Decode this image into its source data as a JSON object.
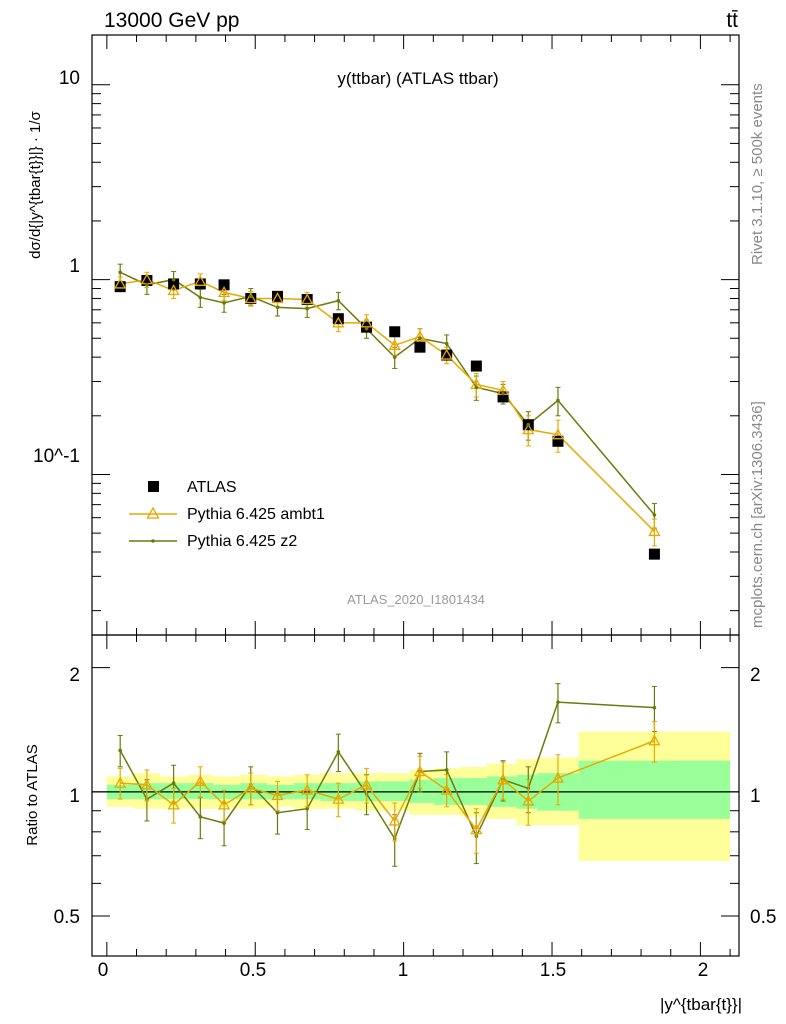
{
  "header": {
    "energy_label": "13000 GeV pp",
    "process_label": "tt̄"
  },
  "side_labels": {
    "rivet": "Rivet 3.1.10, ≥ 500k events",
    "mcplots": "mcplots.cern.ch [arXiv:1306.3436]"
  },
  "chart_data": [
    {
      "type": "scatter",
      "title": "y(ttbar) (ATLAS ttbar)",
      "watermark": "ATLAS_2020_I1801434",
      "ylabel": "dσ/d{|y^{tbar{t}}|} · 1/σ",
      "yscale": "log",
      "ylim": [
        0.015,
        18
      ],
      "xlim": [
        -0.05,
        2.13
      ],
      "yticks": [
        "10",
        "1",
        "10^-1"
      ],
      "legend_position": "lower-left",
      "x": [
        0.045,
        0.135,
        0.225,
        0.315,
        0.395,
        0.485,
        0.575,
        0.675,
        0.78,
        0.875,
        0.97,
        1.055,
        1.145,
        1.245,
        1.335,
        1.42,
        1.52,
        1.845
      ],
      "series": [
        {
          "name": "ATLAS",
          "color": "#000000",
          "marker": "square",
          "values": [
            0.92,
            0.99,
            0.95,
            0.95,
            0.94,
            0.8,
            0.82,
            0.79,
            0.63,
            0.57,
            0.54,
            0.45,
            0.41,
            0.36,
            0.25,
            0.18,
            0.148,
            0.039
          ]
        },
        {
          "name": "Pythia 6.425 ambt1",
          "color": "#e8a800",
          "marker": "triangle",
          "values": [
            0.95,
            1.0,
            0.88,
            0.98,
            0.86,
            0.8,
            0.8,
            0.79,
            0.6,
            0.6,
            0.46,
            0.51,
            0.41,
            0.29,
            0.27,
            0.17,
            0.16,
            0.051
          ],
          "errors": [
            0.08,
            0.09,
            0.08,
            0.09,
            0.08,
            0.07,
            0.07,
            0.07,
            0.06,
            0.06,
            0.05,
            0.05,
            0.04,
            0.04,
            0.03,
            0.03,
            0.03,
            0.008
          ]
        },
        {
          "name": "Pythia 6.425 z2",
          "color": "#6b7a0a",
          "marker": "dot",
          "values": [
            1.09,
            0.94,
            1.0,
            0.81,
            0.76,
            0.82,
            0.72,
            0.71,
            0.78,
            0.56,
            0.4,
            0.5,
            0.47,
            0.28,
            0.26,
            0.18,
            0.24,
            0.062
          ],
          "errors": [
            0.11,
            0.1,
            0.1,
            0.09,
            0.08,
            0.08,
            0.07,
            0.07,
            0.08,
            0.06,
            0.05,
            0.06,
            0.05,
            0.04,
            0.03,
            0.03,
            0.04,
            0.009
          ]
        }
      ]
    },
    {
      "type": "scatter",
      "ylabel": "Ratio to ATLAS",
      "xlabel": "|y^{tbar{t}}|",
      "yscale": "log",
      "ylim": [
        0.4,
        2.4
      ],
      "xlim": [
        -0.05,
        2.13
      ],
      "xticks": [
        "0",
        "0.5",
        "1",
        "1.5",
        "2"
      ],
      "yticks": [
        "2",
        "1",
        "0.5"
      ],
      "bins": [
        {
          "lo": 0.0,
          "hi": 0.09,
          "band_inner": [
            0.96,
            1.04
          ],
          "band_outer": [
            0.92,
            1.09
          ]
        },
        {
          "lo": 0.09,
          "hi": 0.18,
          "band_inner": [
            0.96,
            1.05
          ],
          "band_outer": [
            0.91,
            1.11
          ]
        },
        {
          "lo": 0.18,
          "hi": 0.27,
          "band_inner": [
            0.96,
            1.05
          ],
          "band_outer": [
            0.91,
            1.09
          ]
        },
        {
          "lo": 0.27,
          "hi": 0.36,
          "band_inner": [
            0.96,
            1.05
          ],
          "band_outer": [
            0.91,
            1.1
          ]
        },
        {
          "lo": 0.36,
          "hi": 0.45,
          "band_inner": [
            0.96,
            1.04
          ],
          "band_outer": [
            0.91,
            1.09
          ]
        },
        {
          "lo": 0.45,
          "hi": 0.54,
          "band_inner": [
            0.96,
            1.05
          ],
          "band_outer": [
            0.91,
            1.1
          ]
        },
        {
          "lo": 0.54,
          "hi": 0.63,
          "band_inner": [
            0.96,
            1.04
          ],
          "band_outer": [
            0.92,
            1.09
          ]
        },
        {
          "lo": 0.63,
          "hi": 0.72,
          "band_inner": [
            0.96,
            1.05
          ],
          "band_outer": [
            0.91,
            1.1
          ]
        },
        {
          "lo": 0.72,
          "hi": 0.84,
          "band_inner": [
            0.95,
            1.05
          ],
          "band_outer": [
            0.91,
            1.11
          ]
        },
        {
          "lo": 0.84,
          "hi": 0.93,
          "band_inner": [
            0.95,
            1.06
          ],
          "band_outer": [
            0.9,
            1.11
          ]
        },
        {
          "lo": 0.93,
          "hi": 1.02,
          "band_inner": [
            0.95,
            1.06
          ],
          "band_outer": [
            0.9,
            1.11
          ]
        },
        {
          "lo": 1.02,
          "hi": 1.1,
          "band_inner": [
            0.94,
            1.07
          ],
          "band_outer": [
            0.88,
            1.13
          ]
        },
        {
          "lo": 1.1,
          "hi": 1.19,
          "band_inner": [
            0.93,
            1.08
          ],
          "band_outer": [
            0.88,
            1.14
          ]
        },
        {
          "lo": 1.19,
          "hi": 1.28,
          "band_inner": [
            0.93,
            1.08
          ],
          "band_outer": [
            0.87,
            1.15
          ]
        },
        {
          "lo": 1.28,
          "hi": 1.38,
          "band_inner": [
            0.92,
            1.09
          ],
          "band_outer": [
            0.86,
            1.17
          ]
        },
        {
          "lo": 1.38,
          "hi": 1.45,
          "band_inner": [
            0.91,
            1.1
          ],
          "band_outer": [
            0.83,
            1.2
          ]
        },
        {
          "lo": 1.45,
          "hi": 1.59,
          "band_inner": [
            0.9,
            1.11
          ],
          "band_outer": [
            0.83,
            1.21
          ]
        },
        {
          "lo": 1.59,
          "hi": 2.1,
          "band_inner": [
            0.86,
            1.19
          ],
          "band_outer": [
            0.68,
            1.4
          ]
        }
      ],
      "series": [
        {
          "name": "Pythia 6.425 ambt1",
          "values": [
            1.05,
            1.04,
            0.93,
            1.06,
            0.93,
            1.02,
            0.98,
            1.01,
            0.96,
            1.04,
            0.85,
            1.12,
            1.01,
            0.81,
            1.07,
            0.95,
            1.08,
            1.33
          ],
          "errors": [
            0.09,
            0.09,
            0.09,
            0.09,
            0.08,
            0.09,
            0.08,
            0.09,
            0.09,
            0.1,
            0.09,
            0.1,
            0.09,
            0.1,
            0.11,
            0.12,
            0.15,
            0.15
          ]
        },
        {
          "name": "Pythia 6.425 z2",
          "values": [
            1.26,
            0.96,
            1.05,
            0.87,
            0.84,
            1.04,
            0.89,
            0.91,
            1.25,
            0.99,
            0.77,
            1.12,
            1.13,
            0.78,
            1.07,
            1.02,
            1.65,
            1.6
          ],
          "errors": [
            0.11,
            0.11,
            0.11,
            0.1,
            0.1,
            0.11,
            0.1,
            0.1,
            0.13,
            0.11,
            0.11,
            0.12,
            0.12,
            0.11,
            0.12,
            0.13,
            0.18,
            0.2
          ]
        }
      ]
    }
  ]
}
